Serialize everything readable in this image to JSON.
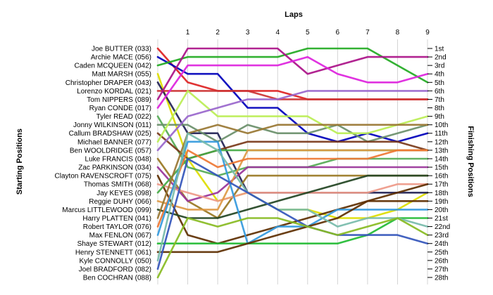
{
  "chart_data": {
    "type": "line",
    "title": "",
    "xlabel": "Laps",
    "ylabel_left": "Starting Positions",
    "ylabel_right": "Finishing Positions",
    "x": [
      0,
      1,
      2,
      3,
      4,
      5,
      6,
      7,
      8,
      9
    ],
    "x_tick_labels": [
      "1",
      "2",
      "3",
      "4",
      "5",
      "6",
      "7",
      "8",
      "9"
    ],
    "start_labels": [
      "Joe BUTTER (033)",
      "Archie MACE (056)",
      "Caden MCQUEEN (042)",
      "Matt MARSH (055)",
      "Christopher DRAPER (043)",
      "Lorenzo KORDAL (021)",
      "Tom NIPPERS (089)",
      "Ryan CONDE (017)",
      "Tyler READ (022)",
      "Jonny WILKINSON (011)",
      "Callum BRADSHAW (025)",
      "Michael BANNER (077)",
      "Ben WOOLDRIDGE (057)",
      "Luke FRANCIS (048)",
      "Zac PARKINSON (034)",
      "Clayton RAVENSCROFT (075)",
      "Thomas SMITH (068)",
      "Jay KEYES (098)",
      "Reggie DUHY (066)",
      "Marcus LITTLEWOOD (099)",
      "Harry PLATTEN (041)",
      "Robert TAYLOR (076)",
      "Max FENLON (067)",
      "Shaye STEWART (012)",
      "Henry STENNETT (061)",
      "Kyle CONNOLLY (050)",
      "Joel BRADFORD (082)",
      "Ben COCHRAN (088)"
    ],
    "finish_labels": [
      "1st",
      "2nd",
      "3rd",
      "4th",
      "5th",
      "6th",
      "7th",
      "8th",
      "9th",
      "10th",
      "11th",
      "12th",
      "13th",
      "14th",
      "15th",
      "16th",
      "17th",
      "18th",
      "19th",
      "20th",
      "21st",
      "22nd",
      "23rd",
      "24th",
      "25th",
      "26th",
      "27th",
      "28th"
    ],
    "series": [
      {
        "color": "#dd2222",
        "values": [
          1,
          5,
          6,
          6,
          6,
          7,
          7,
          7,
          7,
          7
        ]
      },
      {
        "color": "#0000bb",
        "values": [
          2,
          4,
          4,
          8,
          8,
          11,
          12,
          11,
          12,
          11
        ]
      },
      {
        "color": "#22aa22",
        "values": [
          3,
          2,
          2,
          2,
          2,
          1,
          1,
          1,
          3,
          5
        ]
      },
      {
        "color": "#dddd00",
        "values": [
          4,
          14,
          19,
          18,
          20,
          20,
          21,
          21,
          20,
          18
        ]
      },
      {
        "color": "#222255",
        "values": [
          5,
          11,
          11,
          18,
          18,
          18,
          18,
          18,
          18,
          18
        ]
      },
      {
        "color": "#cc3333",
        "values": [
          6,
          6,
          6,
          6,
          7,
          7,
          7,
          7,
          7,
          7
        ]
      },
      {
        "color": "#aa1188",
        "values": [
          7,
          1,
          1,
          1,
          1,
          4,
          3,
          2,
          2,
          2
        ]
      },
      {
        "color": "#dd22dd",
        "values": [
          8,
          3,
          3,
          3,
          3,
          2,
          4,
          5,
          5,
          4
        ]
      },
      {
        "color": "#55aa55",
        "values": [
          9,
          15,
          16,
          15,
          15,
          15,
          14,
          14,
          14,
          14
        ]
      },
      {
        "color": "#6a8f6a",
        "values": [
          10,
          10,
          12,
          10,
          11,
          11,
          10,
          12,
          11,
          10
        ]
      },
      {
        "color": "#7a3a1a",
        "values": [
          11,
          14,
          13,
          12,
          12,
          12,
          12,
          12,
          12,
          13
        ]
      },
      {
        "color": "#bbee55",
        "values": [
          12,
          6,
          9,
          9,
          9,
          9,
          11,
          11,
          10,
          9
        ]
      },
      {
        "color": "#9966cc",
        "values": [
          13,
          9,
          8,
          7,
          7,
          6,
          6,
          6,
          6,
          6
        ]
      },
      {
        "color": "#997722",
        "values": [
          14,
          19,
          21,
          16,
          16,
          16,
          16,
          16,
          16,
          16
        ]
      },
      {
        "color": "#993399",
        "values": [
          15,
          19,
          18,
          15,
          15,
          15,
          15,
          15,
          15,
          15
        ]
      },
      {
        "color": "#5d2e00",
        "values": [
          16,
          23,
          24,
          23,
          22,
          21,
          20,
          19,
          19,
          19
        ]
      },
      {
        "color": "#ee9988",
        "values": [
          17,
          18,
          19,
          18,
          18,
          18,
          18,
          18,
          17,
          17
        ]
      },
      {
        "color": "#44aa44",
        "values": [
          18,
          14,
          13,
          13,
          13,
          13,
          13,
          13,
          13,
          13
        ]
      },
      {
        "color": "#dd9944",
        "values": [
          19,
          20,
          20,
          13,
          13,
          13,
          13,
          13,
          13,
          13
        ]
      },
      {
        "color": "#224422",
        "values": [
          20,
          21,
          21,
          20,
          19,
          18,
          17,
          16,
          16,
          16
        ]
      },
      {
        "color": "#997733",
        "values": [
          21,
          11,
          10,
          11,
          10,
          10,
          10,
          10,
          10,
          10
        ]
      },
      {
        "color": "#ee7733",
        "values": [
          22,
          13,
          15,
          14,
          14,
          14,
          14,
          14,
          13,
          13
        ]
      },
      {
        "color": "#3399dd",
        "values": [
          23,
          12,
          12,
          24,
          22,
          22,
          20,
          20,
          20,
          20
        ]
      },
      {
        "color": "#22bb33",
        "values": [
          24,
          24,
          24,
          24,
          24,
          24,
          24,
          23,
          21,
          21
        ]
      },
      {
        "color": "#5d2e00",
        "values": [
          25,
          25,
          25,
          24,
          23,
          22,
          21,
          19,
          18,
          17
        ]
      },
      {
        "color": "#77bbaa",
        "values": [
          26,
          11,
          13,
          18,
          20,
          20,
          22,
          21,
          21,
          22
        ]
      },
      {
        "color": "#3355bb",
        "values": [
          27,
          14,
          16,
          18,
          20,
          22,
          23,
          23,
          23,
          24
        ]
      },
      {
        "color": "#88bb22",
        "values": [
          28,
          21,
          22,
          21,
          21,
          22,
          23,
          22,
          21,
          23
        ]
      }
    ]
  }
}
